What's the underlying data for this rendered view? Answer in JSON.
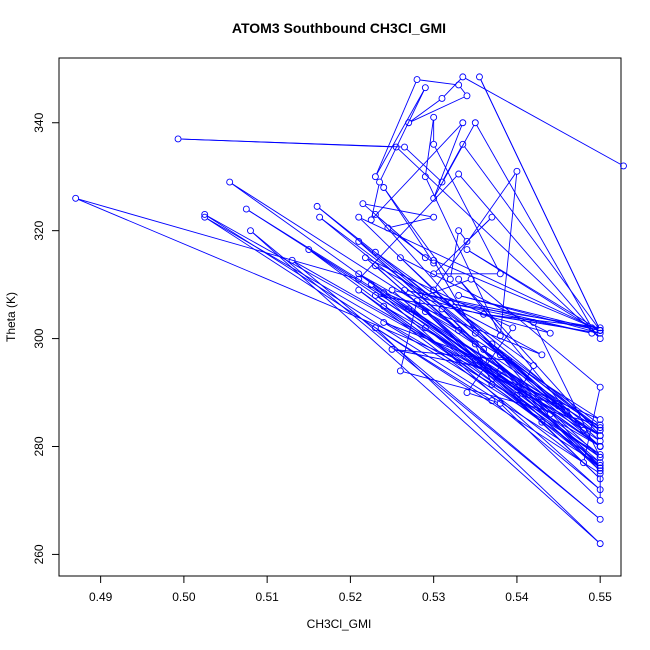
{
  "chart_data": {
    "type": "scatter",
    "title": "ATOM3 Southbound CH3Cl_GMI",
    "xlabel": "CH3Cl_GMI",
    "ylabel": "Theta (K)",
    "xlim": [
      0.485,
      0.5525
    ],
    "ylim": [
      256,
      352
    ],
    "x_ticks": [
      0.49,
      0.5,
      0.51,
      0.52,
      0.53,
      0.54,
      0.55
    ],
    "x_tick_labels": [
      "0.49",
      "0.50",
      "0.51",
      "0.52",
      "0.53",
      "0.54",
      "0.55"
    ],
    "y_ticks": [
      260,
      280,
      300,
      320,
      340
    ],
    "y_tick_labels": [
      "260",
      "280",
      "300",
      "320",
      "340"
    ],
    "grid": false,
    "series": [
      {
        "color": "#0000ff",
        "mode": "lines+markers",
        "points": [
          [
            0.5528,
            332.0
          ],
          [
            0.5335,
            348.5
          ],
          [
            0.531,
            344.5
          ],
          [
            0.527,
            340.0
          ],
          [
            0.534,
            345.0
          ],
          [
            0.533,
            347.0
          ],
          [
            0.528,
            348.0
          ],
          [
            0.523,
            330.0
          ],
          [
            0.529,
            346.5
          ],
          [
            0.5235,
            329.0
          ],
          [
            0.5225,
            322.0
          ],
          [
            0.5335,
            340.0
          ],
          [
            0.53,
            326.0
          ],
          [
            0.535,
            340.0
          ],
          [
            0.549,
            302.0
          ],
          [
            0.534,
            316.5
          ],
          [
            0.55,
            301.5
          ],
          [
            0.5355,
            348.5
          ],
          [
            0.55,
            301.5
          ],
          [
            0.5335,
            336.0
          ],
          [
            0.531,
            329.0
          ],
          [
            0.5265,
            335.5
          ],
          [
            0.4993,
            337.0
          ],
          [
            0.5255,
            335.5
          ],
          [
            0.55,
            300.0
          ],
          [
            0.533,
            330.5
          ],
          [
            0.521,
            311.0
          ],
          [
            0.487,
            326.0
          ],
          [
            0.55,
            285.0
          ],
          [
            0.5055,
            329.0
          ],
          [
            0.55,
            280.0
          ],
          [
            0.5025,
            322.5
          ],
          [
            0.55,
            275.0
          ],
          [
            0.55,
            270.0
          ],
          [
            0.538,
            288.0
          ],
          [
            0.534,
            290.0
          ],
          [
            0.5395,
            302.0
          ],
          [
            0.5218,
            315.0
          ],
          [
            0.55,
            277.0
          ],
          [
            0.521,
            309.0
          ],
          [
            0.548,
            277.0
          ],
          [
            0.55,
            291.0
          ],
          [
            0.5345,
            311.0
          ],
          [
            0.529,
            308.0
          ],
          [
            0.516,
            324.5
          ],
          [
            0.55,
            283.0
          ],
          [
            0.5075,
            324.0
          ],
          [
            0.55,
            282.0
          ],
          [
            0.5025,
            323.0
          ],
          [
            0.55,
            276.5
          ],
          [
            0.536,
            296.0
          ],
          [
            0.524,
            303.0
          ],
          [
            0.55,
            278.5
          ],
          [
            0.5225,
            310.0
          ],
          [
            0.55,
            272.0
          ],
          [
            0.537,
            288.5
          ],
          [
            0.523,
            302.0
          ],
          [
            0.55,
            262.0
          ],
          [
            0.508,
            320.0
          ],
          [
            0.55,
            266.5
          ],
          [
            0.513,
            314.5
          ],
          [
            0.55,
            282.0
          ],
          [
            0.523,
            316.0
          ],
          [
            0.542,
            295.0
          ],
          [
            0.54,
            289.5
          ],
          [
            0.545,
            288.0
          ],
          [
            0.537,
            299.0
          ],
          [
            0.55,
            284.0
          ],
          [
            0.526,
            294.0
          ],
          [
            0.528,
            307.0
          ],
          [
            0.55,
            274.0
          ],
          [
            0.529,
            305.0
          ],
          [
            0.55,
            283.5
          ],
          [
            0.5163,
            322.5
          ],
          [
            0.55,
            280.0
          ],
          [
            0.527,
            305.5
          ],
          [
            0.544,
            286.0
          ],
          [
            0.531,
            305.5
          ],
          [
            0.55,
            275.5
          ],
          [
            0.523,
            313.5
          ],
          [
            0.543,
            297.0
          ],
          [
            0.524,
            308.5
          ],
          [
            0.55,
            283.0
          ],
          [
            0.53,
            309.0
          ],
          [
            0.545,
            287.5
          ],
          [
            0.524,
            306.0
          ],
          [
            0.55,
            278.0
          ],
          [
            0.529,
            302.0
          ],
          [
            0.55,
            276.0
          ],
          [
            0.535,
            296.0
          ],
          [
            0.54,
            291.0
          ],
          [
            0.546,
            286.5
          ],
          [
            0.538,
            297.0
          ],
          [
            0.55,
            281.0
          ],
          [
            0.523,
            308.0
          ],
          [
            0.542,
            303.0
          ],
          [
            0.55,
            278.0
          ],
          [
            0.536,
            298.0
          ],
          [
            0.55,
            276.0
          ],
          [
            0.523,
            323.0
          ],
          [
            0.529,
            315.0
          ],
          [
            0.5215,
            325.0
          ],
          [
            0.53,
            322.5
          ],
          [
            0.5245,
            320.5
          ],
          [
            0.53,
            314.0
          ],
          [
            0.524,
            328.0
          ],
          [
            0.532,
            311.0
          ],
          [
            0.533,
            320.0
          ],
          [
            0.534,
            318.0
          ],
          [
            0.537,
            322.5
          ],
          [
            0.53,
            312.0
          ],
          [
            0.538,
            312.0
          ],
          [
            0.53,
            336.0
          ],
          [
            0.53,
            341.0
          ],
          [
            0.529,
            330.0
          ],
          [
            0.538,
            300.5
          ],
          [
            0.54,
            331.0
          ],
          [
            0.53,
            309.0
          ],
          [
            0.521,
            322.5
          ],
          [
            0.55,
            301.5
          ],
          [
            0.5265,
            309.0
          ],
          [
            0.549,
            301.0
          ],
          [
            0.532,
            306.5
          ],
          [
            0.55,
            302.0
          ],
          [
            0.536,
            304.5
          ],
          [
            0.55,
            301.0
          ],
          [
            0.533,
            308.0
          ],
          [
            0.55,
            301.5
          ],
          [
            0.53,
            314.5
          ],
          [
            0.535,
            301.0
          ],
          [
            0.55,
            280.0
          ],
          [
            0.515,
            316.5
          ],
          [
            0.543,
            284.5
          ],
          [
            0.525,
            309.0
          ],
          [
            0.544,
            301.0
          ],
          [
            0.526,
            315.0
          ],
          [
            0.548,
            283.0
          ],
          [
            0.533,
            311.0
          ],
          [
            0.55,
            282.0
          ],
          [
            0.521,
            312.0
          ],
          [
            0.533,
            301.5
          ],
          [
            0.521,
            318.0
          ],
          [
            0.535,
            299.0
          ],
          [
            0.537,
            291.5
          ],
          [
            0.538,
            294.0
          ],
          [
            0.525,
            298.0
          ],
          [
            0.539,
            296.0
          ]
        ]
      }
    ]
  }
}
